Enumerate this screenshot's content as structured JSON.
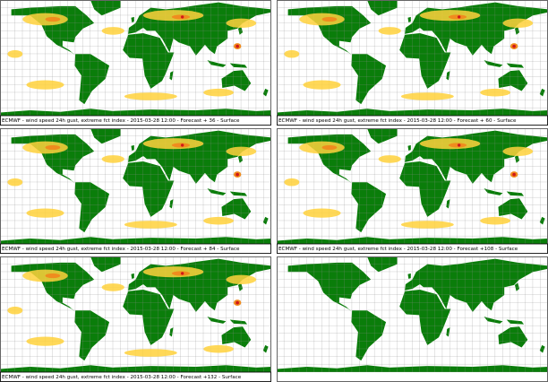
{
  "panels": [
    {
      "caption": "ECMWF - wind speed 24h gust, extreme fct index - 2015-03-28 12:00 - Forecast + 36 - Surface"
    },
    {
      "caption": "ECMWF - wind speed 24h gust, extreme fct index - 2015-03-28 12:00 - Forecast + 60 - Surface"
    },
    {
      "caption": "ECMWF - wind speed 24h gust, extreme fct index - 2015-03-28 12:00 - Forecast + 84 - Surface"
    },
    {
      "caption": "ECMWF - wind speed 24h gust, extreme fct index - 2015-03-28 12:00 - Forecast +108 - Surface"
    },
    {
      "caption": "ECMWF - wind speed 24h gust, extreme fct index - 2015-03-28 12:00 - Forecast +132 - Surface"
    }
  ]
}
